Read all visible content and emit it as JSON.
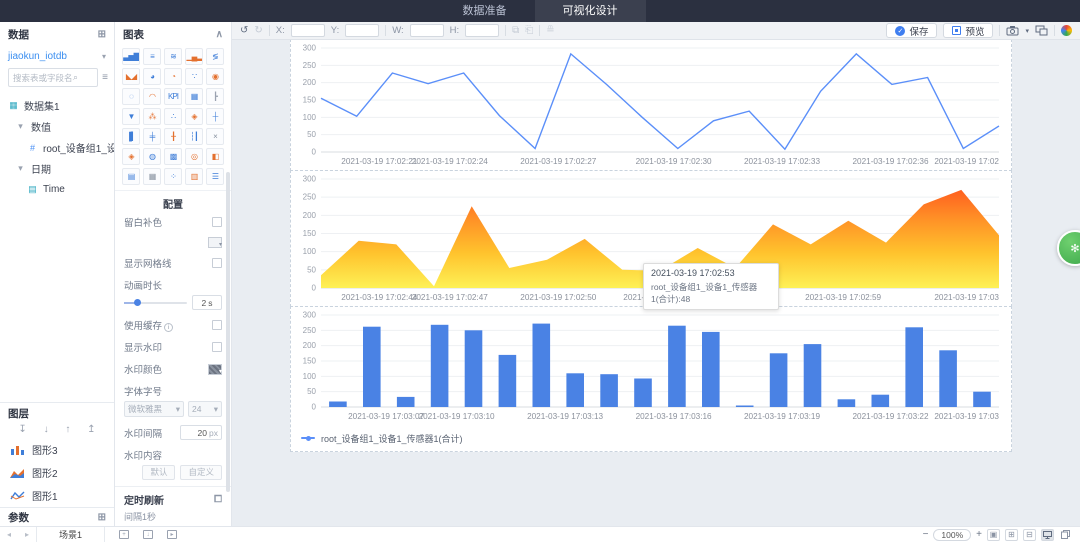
{
  "topbar": {
    "tab_prepare": "数据准备",
    "tab_design": "可视化设计"
  },
  "toolbar": {
    "x": "X:",
    "y": "Y:",
    "w": "W:",
    "h": "H:",
    "save": "保存",
    "preview": "预览"
  },
  "data_panel": {
    "title": "数据",
    "dataset": "jiaokun_iotdb",
    "search_placeholder": "搜索表或字段名称",
    "tree": {
      "dataset_node": "数据集1",
      "numeric_group": "数值",
      "numeric_field": "root_设备组1_设备...",
      "date_group": "日期",
      "date_field": "Time"
    }
  },
  "chart_panel": {
    "title": "图表",
    "icons": [
      {
        "n": "bar-chart-icon",
        "g": "▃▅▇",
        "c": "#3f7ed8"
      },
      {
        "n": "hbar-chart-icon",
        "g": "≡",
        "c": "#3f7ed8"
      },
      {
        "n": "line-chart-icon",
        "g": "≋",
        "c": "#3f7ed8"
      },
      {
        "n": "combo-chart-icon",
        "g": "▁▄▂",
        "c": "#e4702e"
      },
      {
        "n": "pareto-chart-icon",
        "g": "≶",
        "c": "#3f7ed8"
      },
      {
        "n": "area-chart-icon",
        "g": "◣◢",
        "c": "#e4702e"
      },
      {
        "n": "pie-chart-icon",
        "g": "◕",
        "c": "#3f7ed8"
      },
      {
        "n": "donut-chart-icon",
        "g": "◔",
        "c": "#e4702e"
      },
      {
        "n": "scatter-chart-icon",
        "g": "∵",
        "c": "#3f7ed8"
      },
      {
        "n": "rose-chart-icon",
        "g": "◉",
        "c": "#e4702e"
      },
      {
        "n": "spiral-chart-icon",
        "g": "◌",
        "c": "#3f7ed8"
      },
      {
        "n": "gauge-chart-icon",
        "g": "◠",
        "c": "#e4702e"
      },
      {
        "n": "kpi-chart-icon",
        "g": "KPI",
        "c": "#3f7ed8"
      },
      {
        "n": "table-chart-icon",
        "g": "▦",
        "c": "#3f7ed8"
      },
      {
        "n": "org-chart-icon",
        "g": "┣",
        "c": "#9aa2b0"
      },
      {
        "n": "funnel-chart-icon",
        "g": "▼",
        "c": "#3f7ed8"
      },
      {
        "n": "network-chart-icon",
        "g": "⁂",
        "c": "#e4702e"
      },
      {
        "n": "bubble-chart-icon",
        "g": "∴",
        "c": "#3f7ed8"
      },
      {
        "n": "radar-chart-icon",
        "g": "◈",
        "c": "#e4702e"
      },
      {
        "n": "axis-chart-icon",
        "g": "┼",
        "c": "#3f7ed8"
      },
      {
        "n": "gantt-chart-icon",
        "g": "▐▍",
        "c": "#3f7ed8"
      },
      {
        "n": "boxplot-chart-icon",
        "g": "╪",
        "c": "#3f7ed8"
      },
      {
        "n": "candlestick-chart-icon",
        "g": "╂",
        "c": "#e4702e"
      },
      {
        "n": "stock-chart-icon",
        "g": "┆┃",
        "c": "#3f7ed8"
      },
      {
        "n": "sankey-chart-icon",
        "g": "×",
        "c": "#8892a0"
      },
      {
        "n": "map-chart-icon",
        "g": "◈",
        "c": "#e4702e"
      },
      {
        "n": "world-map-chart-icon",
        "g": "◍",
        "c": "#3f7ed8"
      },
      {
        "n": "heatmap-chart-icon",
        "g": "▩",
        "c": "#3f7ed8"
      },
      {
        "n": "dial-chart-icon",
        "g": "◎",
        "c": "#e4702e"
      },
      {
        "n": "cube-chart-icon",
        "g": "◧",
        "c": "#e4702e"
      },
      {
        "n": "table2-chart-icon",
        "g": "▤",
        "c": "#3f7ed8"
      },
      {
        "n": "matrix-chart-icon",
        "g": "▦",
        "c": "#8892a0"
      },
      {
        "n": "relation-chart-icon",
        "g": "⁘",
        "c": "#3f7ed8"
      },
      {
        "n": "compare-chart-icon",
        "g": "▥",
        "c": "#e4702e"
      },
      {
        "n": "list-chart-icon",
        "g": "☰",
        "c": "#3f7ed8"
      }
    ]
  },
  "config_panel": {
    "title": "配置",
    "blank_fill": "留白补色",
    "show_grid": "显示网格线",
    "anim_duration": "动画时长",
    "anim_value": "2",
    "anim_unit": "s",
    "use_cache": "使用缓存",
    "show_watermark": "显示水印",
    "watermark_color": "水印颜色",
    "font_size_label": "字体字号",
    "font_name": "微软雅黑",
    "font_size": "24",
    "watermark_gap": "水印间隔",
    "gap_value": "20",
    "gap_unit": "px",
    "watermark_content": "水印内容",
    "btn_default": "默认",
    "btn_custom": "自定义",
    "refresh_title": "定时刷新",
    "refresh_interval": "间隔1秒"
  },
  "layers_panel": {
    "title": "图层",
    "items": [
      {
        "label": "图形3"
      },
      {
        "label": "图形2"
      },
      {
        "label": "图形1"
      }
    ],
    "params": "参数"
  },
  "scene_bar": {
    "tab": "场景1"
  },
  "zoom_controls": {
    "level": "100%"
  },
  "tooltip": {
    "time": "2021-03-19 17:02:53",
    "value": "root_设备组1_设备1_传感器1(合计):48"
  },
  "legend": {
    "text": "root_设备组1_设备1_传感器1(合计)"
  },
  "colors": {
    "accent": "#3f7ef0",
    "line": "#5b8ff9",
    "bar": "#4a82e4",
    "green_float": "#3da84b"
  },
  "chart_data": [
    {
      "type": "line",
      "series_name": "root_设备组1_设备1_传感器1(合计)",
      "color": "#5b8ff9",
      "ylim": [
        0,
        300
      ],
      "yticks": [
        0,
        50,
        100,
        150,
        200,
        250,
        300
      ],
      "values": [
        155,
        103,
        228,
        197,
        228,
        105,
        10,
        283,
        195,
        100,
        10,
        90,
        118,
        8,
        175,
        283,
        195,
        215,
        10,
        75
      ],
      "x_labels": [
        {
          "text": "2021-03-19 17:02:21",
          "pos": 0.03
        },
        {
          "text": "2021-03-19 17:02:24",
          "pos": 0.19
        },
        {
          "text": "2021-03-19 17:02:27",
          "pos": 0.35
        },
        {
          "text": "2021-03-19 17:02:30",
          "pos": 0.52
        },
        {
          "text": "2021-03-19 17:02:33",
          "pos": 0.68
        },
        {
          "text": "2021-03-19 17:02:36",
          "pos": 0.84
        },
        {
          "text": "2021-03-19 17:02",
          "pos": 1
        }
      ],
      "grid": true
    },
    {
      "type": "area",
      "series_name": "root_设备组1_设备1_传感器1(合计)",
      "gradient": [
        "#ff4d1c",
        "#ff8e26",
        "#ffc32d",
        "#fef156"
      ],
      "ylim": [
        0,
        300
      ],
      "yticks": [
        0,
        50,
        100,
        150,
        200,
        250,
        300
      ],
      "values": [
        35,
        130,
        120,
        5,
        225,
        55,
        78,
        135,
        50,
        48,
        110,
        55,
        175,
        120,
        185,
        125,
        230,
        270,
        145
      ],
      "highlight_point": {
        "time": "2021-03-19 17:02:53",
        "value": 48
      },
      "x_labels": [
        {
          "text": "2021-03-19 17:02:44",
          "pos": 0.03
        },
        {
          "text": "2021-03-19 17:02:47",
          "pos": 0.19
        },
        {
          "text": "2021-03-19 17:02:50",
          "pos": 0.35
        },
        {
          "text": "2021-03-",
          "pos": 0.47
        },
        {
          "text": "2021-03-19 17:02:59",
          "pos": 0.77
        },
        {
          "text": "2021-03-19 17:03",
          "pos": 1
        }
      ],
      "grid": true
    },
    {
      "type": "bar",
      "series_name": "root_设备组1_设备1_传感器1(合计)",
      "color": "#4a82e4",
      "ylim": [
        0,
        300
      ],
      "yticks": [
        0,
        50,
        100,
        150,
        200,
        250,
        300
      ],
      "values": [
        18,
        262,
        33,
        268,
        250,
        170,
        272,
        110,
        107,
        93,
        265,
        245,
        5,
        175,
        205,
        25,
        40,
        260,
        185,
        50
      ],
      "x_labels": [
        {
          "text": "2021-03-19 17:03:07",
          "pos": 0.04
        },
        {
          "text": "2021-03-19 17:03:10",
          "pos": 0.2
        },
        {
          "text": "2021-03-19 17:03:13",
          "pos": 0.36
        },
        {
          "text": "2021-03-19 17:03:16",
          "pos": 0.52
        },
        {
          "text": "2021-03-19 17:03:19",
          "pos": 0.68
        },
        {
          "text": "2021-03-19 17:03:22",
          "pos": 0.84
        },
        {
          "text": "2021-03-19 17:03",
          "pos": 1
        }
      ],
      "grid": true
    }
  ]
}
